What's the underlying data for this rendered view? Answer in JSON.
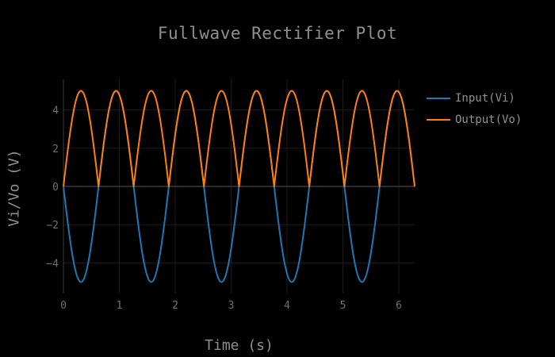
{
  "chart_data": {
    "type": "line",
    "title": "Fullwave Rectifier Plot",
    "xlabel": "Time (s)",
    "ylabel": "Vi/Vo (V)",
    "xlim": [
      0,
      6.2832
    ],
    "ylim": [
      -5.6,
      5.6
    ],
    "x_ticks": [
      0,
      1,
      2,
      3,
      4,
      5,
      6
    ],
    "y_ticks": [
      -4,
      -2,
      0,
      2,
      4
    ],
    "grid": true,
    "legend_position": "top-right",
    "series": [
      {
        "name": "Input(Vi)",
        "color": "#1f77b4",
        "formula": "Vi = -5*sin(5*t)",
        "amplitude": 5,
        "angular_frequency": 5,
        "sign": -1
      },
      {
        "name": "Output(Vo)",
        "color": "#ff7f0e",
        "formula": "Vo = 5*|sin(5*t)|",
        "amplitude": 5,
        "angular_frequency": 5
      }
    ],
    "x_samples": 400
  }
}
